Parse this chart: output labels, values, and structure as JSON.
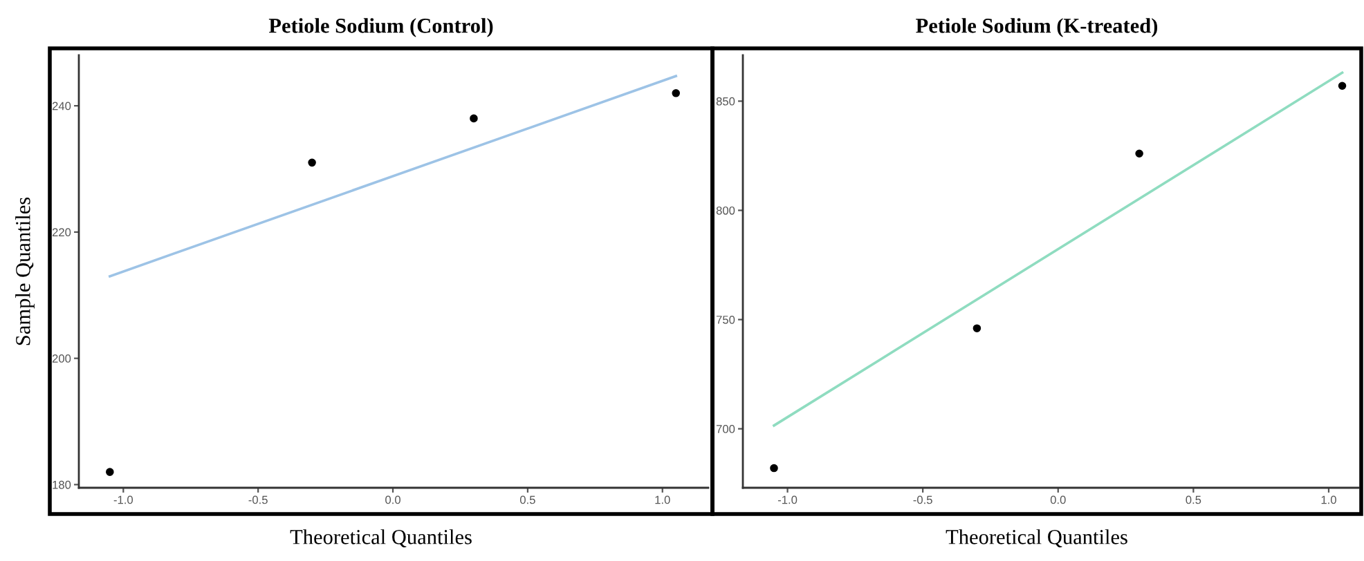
{
  "chart_data": [
    {
      "type": "scatter",
      "title": "Petiole Sodium (Control)",
      "xlabel": "Theoretical Quantiles",
      "ylabel": "Sample Quantiles",
      "xlim": [
        -1.165,
        1.17
      ],
      "ylim": [
        179.5,
        248
      ],
      "xticks": [
        {
          "value": -1.0,
          "label": "-1.0"
        },
        {
          "value": -0.5,
          "label": "-0.5"
        },
        {
          "value": 0.0,
          "label": "0.0"
        },
        {
          "value": 0.5,
          "label": "0.5"
        },
        {
          "value": 1.0,
          "label": "1.0"
        }
      ],
      "yticks": [
        180,
        200,
        220,
        240
      ],
      "grid": false,
      "series": [
        {
          "marker": "circle",
          "color": "#000000",
          "x": [
            -1.05,
            -0.3,
            0.3,
            1.05
          ],
          "values": [
            182,
            231,
            238,
            242
          ]
        },
        {
          "type": "line",
          "color": "#9dc3e6",
          "x": [
            -1.05,
            1.05
          ],
          "values": [
            213,
            244.7
          ]
        }
      ]
    },
    {
      "type": "scatter",
      "title": "Petiole Sodium (K-treated)",
      "xlabel": "Theoretical Quantiles",
      "xlim": [
        -1.165,
        1.11
      ],
      "ylim": [
        673,
        871
      ],
      "xticks": [
        {
          "value": -1.0,
          "label": "-1.0"
        },
        {
          "value": -0.5,
          "label": "-0.5"
        },
        {
          "value": 0.0,
          "label": "0.0"
        },
        {
          "value": 0.5,
          "label": "0.5"
        },
        {
          "value": 1.0,
          "label": "1.0"
        }
      ],
      "yticks": [
        700,
        750,
        800,
        850
      ],
      "grid": false,
      "series": [
        {
          "marker": "circle",
          "color": "#000000",
          "x": [
            -1.05,
            -0.3,
            0.3,
            1.05
          ],
          "values": [
            682,
            746,
            826,
            857
          ]
        },
        {
          "type": "line",
          "color": "#8fdcc0",
          "x": [
            -1.05,
            1.05
          ],
          "values": [
            701.5,
            863
          ]
        }
      ]
    }
  ]
}
